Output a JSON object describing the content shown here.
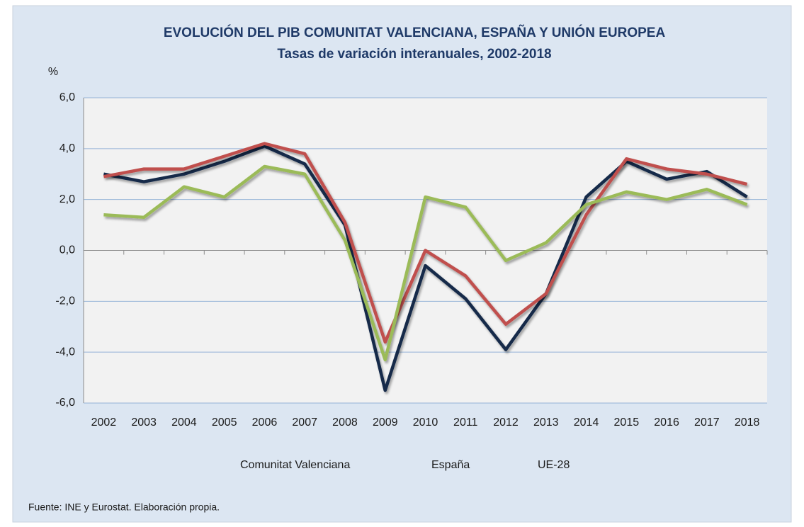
{
  "chart_data": {
    "type": "line",
    "title": "EVOLUCIÓN DEL PIB COMUNITAT VALENCIANA, ESPAÑA Y UNIÓN EUROPEA",
    "subtitle": "Tasas de variación interanuales, 2002-2018",
    "y_label": "%",
    "source": "Fuente: INE y Eurostat. Elaboración propia.",
    "categories": [
      "2002",
      "2003",
      "2004",
      "2005",
      "2006",
      "2007",
      "2008",
      "2009",
      "2010",
      "2011",
      "2012",
      "2013",
      "2014",
      "2015",
      "2016",
      "2017",
      "2018"
    ],
    "series": [
      {
        "name": "Comunitat Valenciana",
        "color": "#12294a",
        "values": [
          3.0,
          2.7,
          3.0,
          3.5,
          4.1,
          3.4,
          1.0,
          -5.5,
          -0.6,
          -1.9,
          -3.9,
          -1.7,
          2.1,
          3.5,
          2.8,
          3.1,
          2.1
        ]
      },
      {
        "name": "España",
        "color": "#c0504d",
        "values": [
          2.9,
          3.2,
          3.2,
          3.7,
          4.2,
          3.8,
          1.1,
          -3.6,
          0.0,
          -1.0,
          -2.9,
          -1.7,
          1.4,
          3.6,
          3.2,
          3.0,
          2.6
        ]
      },
      {
        "name": "UE-28",
        "color": "#9bbb59",
        "values": [
          1.4,
          1.3,
          2.5,
          2.1,
          3.3,
          3.0,
          0.4,
          -4.3,
          2.1,
          1.7,
          -0.4,
          0.3,
          1.8,
          2.3,
          2.0,
          2.4,
          1.8
        ]
      }
    ],
    "ylim": [
      -6,
      6
    ],
    "yticks": [
      {
        "value": -6,
        "label": "-6,0"
      },
      {
        "value": -4,
        "label": "-4,0"
      },
      {
        "value": -2,
        "label": "-2,0"
      },
      {
        "value": 0,
        "label": "0,0"
      },
      {
        "value": 2,
        "label": "2,0"
      },
      {
        "value": 4,
        "label": "4,0"
      },
      {
        "value": 6,
        "label": "6,0"
      }
    ],
    "grid": true,
    "legend": "bottom"
  }
}
